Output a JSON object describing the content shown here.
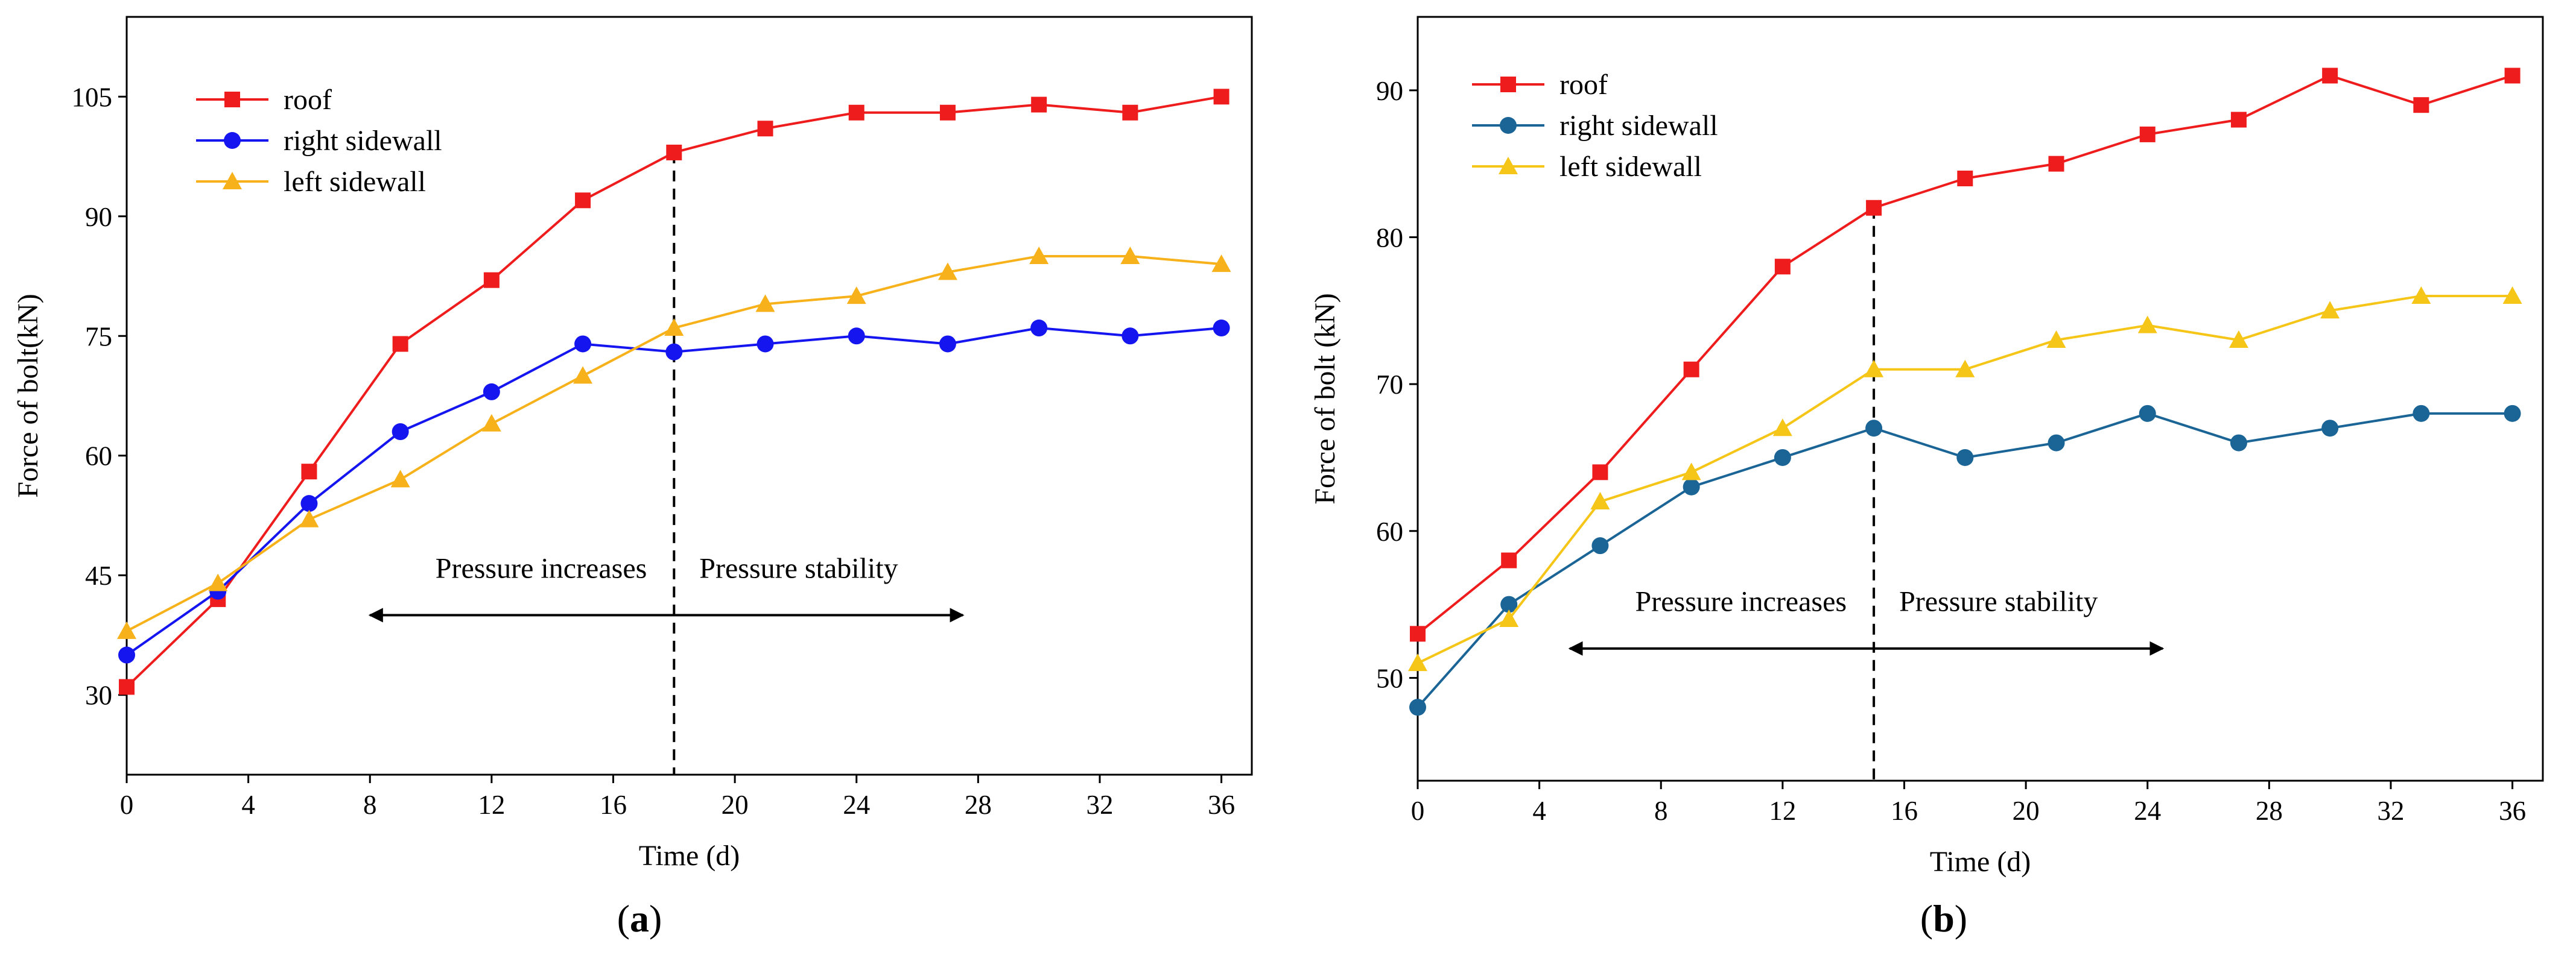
{
  "chart_data": [
    {
      "type": "line",
      "panel_label": "a",
      "xlabel": "Time (d)",
      "ylabel": "Force of bolt(kN)",
      "xlim": [
        0,
        37
      ],
      "ylim": [
        20,
        115
      ],
      "xticks": [
        0,
        4,
        8,
        12,
        16,
        20,
        24,
        28,
        32,
        36
      ],
      "yticks": [
        30,
        45,
        60,
        75,
        90,
        105
      ],
      "x": [
        0,
        3,
        6,
        9,
        12,
        15,
        18,
        21,
        24,
        27,
        30,
        33,
        36
      ],
      "series": [
        {
          "name": "roof",
          "color": "#ee1c1c",
          "marker": "square",
          "values": [
            31,
            42,
            58,
            74,
            82,
            92,
            98,
            101,
            103,
            103,
            104,
            103,
            105
          ]
        },
        {
          "name": "right sidewall",
          "color": "#1515f0",
          "marker": "circle",
          "values": [
            35,
            43,
            54,
            63,
            68,
            74,
            73,
            74,
            75,
            74,
            76,
            75,
            76
          ]
        },
        {
          "name": "left sidewall",
          "color": "#f7b21b",
          "marker": "triangle",
          "values": [
            38,
            44,
            52,
            57,
            64,
            70,
            76,
            79,
            80,
            83,
            85,
            85,
            84
          ]
        }
      ],
      "divider_x": 18,
      "annotations": {
        "left": "Pressure increases",
        "right": "Pressure stability",
        "arrow_from": 8,
        "arrow_to": 27.5,
        "arrow_y": 40
      },
      "legend_position": "top-left"
    },
    {
      "type": "line",
      "panel_label": "b",
      "xlabel": "Time (d)",
      "ylabel": "Force of bolt (kN)",
      "xlim": [
        0,
        37
      ],
      "ylim": [
        43,
        95
      ],
      "xticks": [
        0,
        4,
        8,
        12,
        16,
        20,
        24,
        28,
        32,
        36
      ],
      "yticks": [
        50,
        60,
        70,
        80,
        90
      ],
      "x": [
        0,
        3,
        6,
        9,
        12,
        15,
        18,
        21,
        24,
        27,
        30,
        33,
        36
      ],
      "series": [
        {
          "name": "roof",
          "color": "#ee1c1c",
          "marker": "square",
          "values": [
            53,
            58,
            64,
            71,
            78,
            82,
            84,
            85,
            87,
            88,
            91,
            89,
            91
          ]
        },
        {
          "name": "right sidewall",
          "color": "#1a6496",
          "marker": "circle",
          "values": [
            48,
            55,
            59,
            63,
            65,
            67,
            65,
            66,
            68,
            66,
            67,
            68,
            68
          ]
        },
        {
          "name": "left sidewall",
          "color": "#f5c518",
          "marker": "triangle",
          "values": [
            51,
            54,
            62,
            64,
            67,
            71,
            71,
            73,
            74,
            73,
            75,
            76,
            76
          ]
        }
      ],
      "divider_x": 15,
      "annotations": {
        "left": "Pressure increases",
        "right": "Pressure stability",
        "arrow_from": 5,
        "arrow_to": 24.5,
        "arrow_y": 52
      },
      "legend_position": "top-left"
    }
  ]
}
